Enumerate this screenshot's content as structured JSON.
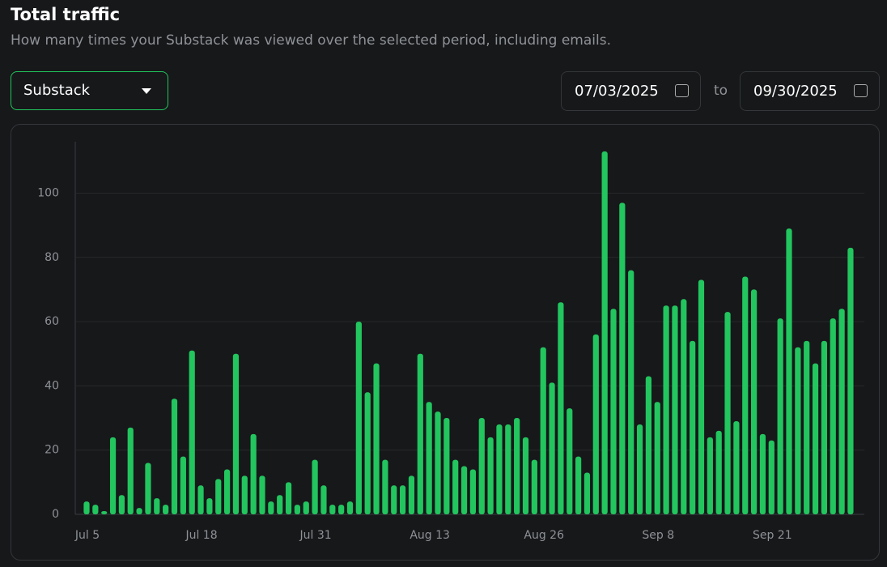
{
  "header": {
    "title": "Total traffic",
    "subtitle": "How many times your Substack was viewed over the selected period, including emails."
  },
  "controls": {
    "dropdown": "Substack",
    "start_date": "07/03/2025",
    "to": "to",
    "end_date": "09/30/2025"
  },
  "chart_data": {
    "type": "bar",
    "categories": [
      "Jul 5",
      null,
      null,
      null,
      null,
      null,
      null,
      null,
      null,
      null,
      null,
      null,
      null,
      "Jul 18",
      null,
      null,
      null,
      null,
      null,
      null,
      null,
      null,
      null,
      null,
      null,
      null,
      "Jul 31",
      null,
      null,
      null,
      null,
      null,
      null,
      null,
      null,
      null,
      null,
      null,
      null,
      "Aug 13",
      null,
      null,
      null,
      null,
      null,
      null,
      null,
      null,
      null,
      null,
      null,
      null,
      "Aug 26",
      null,
      null,
      null,
      null,
      null,
      null,
      null,
      null,
      null,
      null,
      null,
      null,
      "Sep 8",
      null,
      null,
      null,
      null,
      null,
      null,
      null,
      null,
      null,
      null,
      null,
      null,
      "Sep 21",
      null,
      null,
      null,
      null,
      null,
      null,
      null,
      null,
      null
    ],
    "values": [
      4,
      3,
      1,
      24,
      6,
      27,
      2,
      16,
      5,
      3,
      36,
      18,
      51,
      9,
      5,
      11,
      14,
      50,
      12,
      25,
      12,
      4,
      6,
      10,
      3,
      4,
      17,
      9,
      3,
      3,
      4,
      60,
      38,
      47,
      17,
      9,
      9,
      12,
      50,
      35,
      32,
      30,
      17,
      15,
      14,
      30,
      24,
      28,
      28,
      30,
      24,
      17,
      52,
      41,
      66,
      33,
      18,
      13,
      56,
      113,
      64,
      97,
      76,
      28,
      43,
      35,
      65,
      65,
      67,
      54,
      73,
      24,
      26,
      63,
      29,
      74,
      70,
      25,
      23,
      61,
      89,
      52,
      54,
      47,
      54,
      61,
      64,
      83
    ],
    "color": "#22c55e",
    "ylim": [
      0,
      116
    ],
    "yticks": [
      0,
      20,
      40,
      60,
      80,
      100
    ],
    "grid": true
  }
}
